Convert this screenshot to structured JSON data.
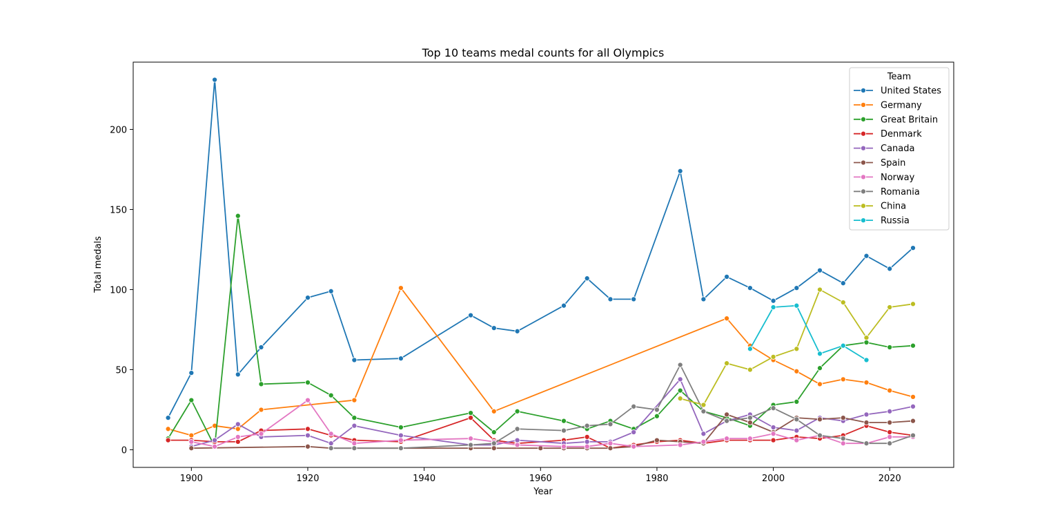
{
  "chart_data": {
    "type": "line",
    "title": "Top 10 teams medal counts for all Olympics",
    "xlabel": "Year",
    "ylabel": "Total medals",
    "xlim": [
      1890,
      2031
    ],
    "ylim": [
      -11,
      242
    ],
    "xticks": [
      1900,
      1920,
      1940,
      1960,
      1980,
      2000,
      2020
    ],
    "yticks": [
      0,
      50,
      100,
      150,
      200
    ],
    "grid": false,
    "legend": {
      "title": "Team",
      "position": "top-right"
    },
    "series": [
      {
        "name": "United States",
        "color": "#1f77b4",
        "x": [
          1896,
          1900,
          1904,
          1908,
          1912,
          1920,
          1924,
          1928,
          1936,
          1948,
          1952,
          1956,
          1964,
          1968,
          1972,
          1976,
          1984,
          1988,
          1992,
          1996,
          2000,
          2004,
          2008,
          2012,
          2016,
          2020,
          2024
        ],
        "y": [
          20,
          48,
          231,
          47,
          64,
          95,
          99,
          56,
          57,
          84,
          76,
          74,
          90,
          107,
          94,
          94,
          174,
          94,
          108,
          101,
          93,
          101,
          112,
          104,
          121,
          113,
          126
        ]
      },
      {
        "name": "Germany",
        "color": "#ff7f0e",
        "x": [
          1896,
          1900,
          1904,
          1908,
          1912,
          1928,
          1936,
          1952,
          1992,
          1996,
          2000,
          2004,
          2008,
          2012,
          2016,
          2020,
          2024
        ],
        "y": [
          13,
          9,
          15,
          13,
          25,
          31,
          101,
          24,
          82,
          65,
          56,
          49,
          41,
          44,
          42,
          37,
          33
        ]
      },
      {
        "name": "Great Britain",
        "color": "#2ca02c",
        "x": [
          1896,
          1900,
          1904,
          1908,
          1912,
          1920,
          1924,
          1928,
          1936,
          1948,
          1952,
          1956,
          1964,
          1968,
          1972,
          1976,
          1980,
          1984,
          1988,
          1992,
          1996,
          2000,
          2004,
          2008,
          2012,
          2016,
          2020,
          2024
        ],
        "y": [
          7,
          31,
          2,
          146,
          41,
          42,
          34,
          20,
          14,
          23,
          11,
          24,
          18,
          13,
          18,
          13,
          21,
          37,
          24,
          20,
          15,
          28,
          30,
          51,
          65,
          67,
          64,
          65
        ]
      },
      {
        "name": "Denmark",
        "color": "#d62728",
        "x": [
          1896,
          1900,
          1904,
          1908,
          1912,
          1920,
          1924,
          1928,
          1936,
          1948,
          1952,
          1956,
          1964,
          1968,
          1972,
          1976,
          1980,
          1984,
          1988,
          1992,
          1996,
          2000,
          2004,
          2008,
          2012,
          2016,
          2020,
          2024
        ],
        "y": [
          6,
          6,
          5,
          5,
          12,
          13,
          9,
          6,
          5,
          20,
          6,
          4,
          6,
          8,
          1,
          3,
          5,
          6,
          4,
          6,
          6,
          6,
          8,
          7,
          9,
          15,
          11,
          9
        ]
      },
      {
        "name": "Canada",
        "color": "#9467bd",
        "x": [
          1900,
          1904,
          1908,
          1912,
          1920,
          1924,
          1928,
          1936,
          1948,
          1952,
          1956,
          1964,
          1968,
          1972,
          1976,
          1984,
          1988,
          1992,
          1996,
          2000,
          2004,
          2008,
          2012,
          2016,
          2020,
          2024
        ],
        "y": [
          2,
          6,
          16,
          8,
          9,
          4,
          15,
          9,
          3,
          3,
          6,
          4,
          5,
          5,
          11,
          44,
          10,
          18,
          22,
          14,
          12,
          20,
          18,
          22,
          24,
          27
        ]
      },
      {
        "name": "Spain",
        "color": "#8c564b",
        "x": [
          1900,
          1920,
          1924,
          1928,
          1936,
          1948,
          1952,
          1960,
          1964,
          1968,
          1972,
          1976,
          1980,
          1984,
          1988,
          1992,
          1996,
          2000,
          2004,
          2008,
          2012,
          2016,
          2020,
          2024
        ],
        "y": [
          1,
          2,
          1,
          1,
          1,
          1,
          1,
          1,
          1,
          1,
          1,
          2,
          6,
          5,
          4,
          22,
          17,
          11,
          20,
          19,
          20,
          17,
          17,
          18
        ]
      },
      {
        "name": "Norway",
        "color": "#e377c2",
        "x": [
          1900,
          1904,
          1908,
          1912,
          1920,
          1924,
          1928,
          1936,
          1948,
          1952,
          1956,
          1964,
          1968,
          1972,
          1976,
          1984,
          1988,
          1992,
          1996,
          2000,
          2004,
          2008,
          2012,
          2016,
          2020,
          2024
        ],
        "y": [
          5,
          2,
          8,
          10,
          31,
          10,
          4,
          6,
          7,
          5,
          3,
          2,
          2,
          4,
          2,
          3,
          5,
          7,
          7,
          10,
          6,
          9,
          4,
          4,
          8,
          8
        ]
      },
      {
        "name": "Romania",
        "color": "#7f7f7f",
        "x": [
          1924,
          1928,
          1936,
          1948,
          1952,
          1956,
          1964,
          1968,
          1972,
          1976,
          1980,
          1984,
          1988,
          1992,
          1996,
          2000,
          2004,
          2008,
          2012,
          2016,
          2020,
          2024
        ],
        "y": [
          1,
          1,
          1,
          3,
          4,
          13,
          12,
          15,
          16,
          27,
          25,
          53,
          24,
          18,
          20,
          26,
          19,
          9,
          7,
          4,
          4,
          9
        ]
      },
      {
        "name": "China",
        "color": "#bcbd22",
        "x": [
          1984,
          1988,
          1992,
          1996,
          2000,
          2004,
          2008,
          2012,
          2016,
          2020,
          2024
        ],
        "y": [
          32,
          28,
          54,
          50,
          58,
          63,
          100,
          92,
          70,
          89,
          91
        ]
      },
      {
        "name": "Russia",
        "color": "#17becf",
        "x": [
          1996,
          2000,
          2004,
          2008,
          2012,
          2016
        ],
        "y": [
          63,
          89,
          90,
          60,
          65,
          56
        ]
      }
    ]
  }
}
